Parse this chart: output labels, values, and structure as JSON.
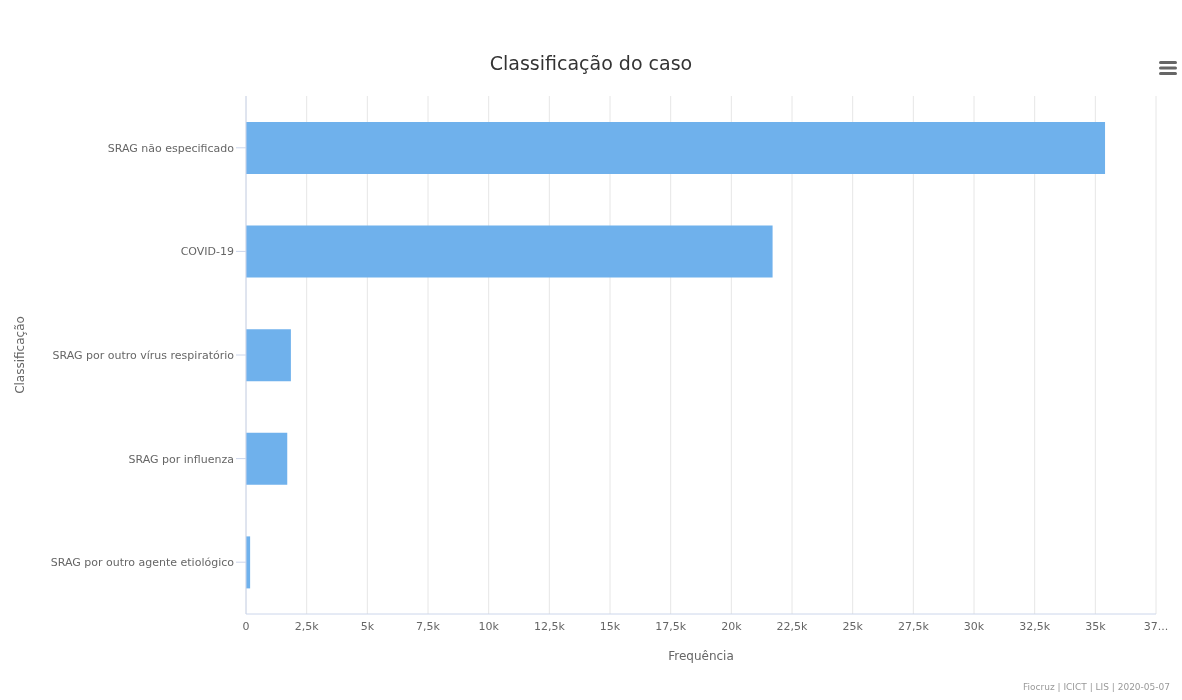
{
  "chart_data": {
    "type": "bar",
    "orientation": "horizontal",
    "title": "Classificação do caso",
    "xlabel": "Frequência",
    "ylabel": "Classificação",
    "categories": [
      "SRAG não especificado",
      "COVID-19",
      "SRAG por outro vírus respiratório",
      "SRAG por influenza",
      "SRAG por outro agente etiológico"
    ],
    "values": [
      35400,
      21700,
      1850,
      1700,
      170
    ],
    "color": "#6fb1ec",
    "xlim": [
      0,
      37500
    ],
    "xticks": [
      {
        "value": 0,
        "label": "0"
      },
      {
        "value": 2500,
        "label": "2,5k"
      },
      {
        "value": 5000,
        "label": "5k"
      },
      {
        "value": 7500,
        "label": "7,5k"
      },
      {
        "value": 10000,
        "label": "10k"
      },
      {
        "value": 12500,
        "label": "12,5k"
      },
      {
        "value": 15000,
        "label": "15k"
      },
      {
        "value": 17500,
        "label": "17,5k"
      },
      {
        "value": 20000,
        "label": "20k"
      },
      {
        "value": 22500,
        "label": "22,5k"
      },
      {
        "value": 25000,
        "label": "25k"
      },
      {
        "value": 27500,
        "label": "27,5k"
      },
      {
        "value": 30000,
        "label": "30k"
      },
      {
        "value": 32500,
        "label": "32,5k"
      },
      {
        "value": 35000,
        "label": "35k"
      },
      {
        "value": 37500,
        "label": "37..."
      }
    ],
    "grid": "x",
    "legend": false,
    "annotations": [
      "Fiocruz | ICICT | LIS | 2020-05-07"
    ]
  }
}
